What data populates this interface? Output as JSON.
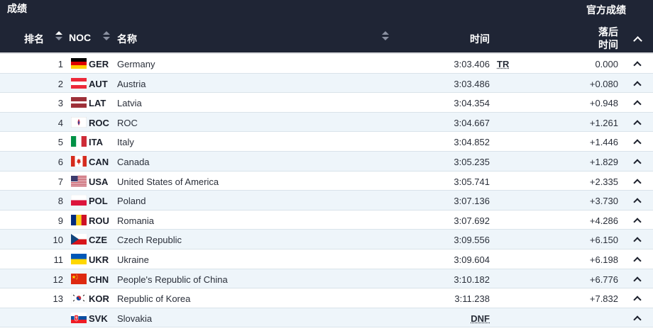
{
  "header": {
    "title": "成绩",
    "official": "官方成绩",
    "col_rank": "排名",
    "col_noc": "NOC",
    "col_name": "名称",
    "col_time": "时间",
    "col_behind_1": "落后",
    "col_behind_2": "时间"
  },
  "rows": [
    {
      "rank": "1",
      "flag": "GER",
      "noc": "GER",
      "name": "Germany",
      "time": "3:03.406",
      "tag": "TR",
      "behind": "0.000"
    },
    {
      "rank": "2",
      "flag": "AUT",
      "noc": "AUT",
      "name": "Austria",
      "time": "3:03.486",
      "tag": "",
      "behind": "+0.080"
    },
    {
      "rank": "3",
      "flag": "LAT",
      "noc": "LAT",
      "name": "Latvia",
      "time": "3:04.354",
      "tag": "",
      "behind": "+0.948"
    },
    {
      "rank": "4",
      "flag": "ROC",
      "noc": "ROC",
      "name": "ROC",
      "time": "3:04.667",
      "tag": "",
      "behind": "+1.261"
    },
    {
      "rank": "5",
      "flag": "ITA",
      "noc": "ITA",
      "name": "Italy",
      "time": "3:04.852",
      "tag": "",
      "behind": "+1.446"
    },
    {
      "rank": "6",
      "flag": "CAN",
      "noc": "CAN",
      "name": "Canada",
      "time": "3:05.235",
      "tag": "",
      "behind": "+1.829"
    },
    {
      "rank": "7",
      "flag": "USA",
      "noc": "USA",
      "name": "United States of America",
      "time": "3:05.741",
      "tag": "",
      "behind": "+2.335"
    },
    {
      "rank": "8",
      "flag": "POL",
      "noc": "POL",
      "name": "Poland",
      "time": "3:07.136",
      "tag": "",
      "behind": "+3.730"
    },
    {
      "rank": "9",
      "flag": "ROU",
      "noc": "ROU",
      "name": "Romania",
      "time": "3:07.692",
      "tag": "",
      "behind": "+4.286"
    },
    {
      "rank": "10",
      "flag": "CZE",
      "noc": "CZE",
      "name": "Czech Republic",
      "time": "3:09.556",
      "tag": "",
      "behind": "+6.150"
    },
    {
      "rank": "11",
      "flag": "UKR",
      "noc": "UKR",
      "name": "Ukraine",
      "time": "3:09.604",
      "tag": "",
      "behind": "+6.198"
    },
    {
      "rank": "12",
      "flag": "CHN",
      "noc": "CHN",
      "name": "People's Republic of China",
      "time": "3:10.182",
      "tag": "",
      "behind": "+6.776"
    },
    {
      "rank": "13",
      "flag": "KOR",
      "noc": "KOR",
      "name": "Republic of Korea",
      "time": "3:11.238",
      "tag": "",
      "behind": "+7.832"
    },
    {
      "rank": "",
      "flag": "SVK",
      "noc": "SVK",
      "name": "Slovakia",
      "time": "DNF",
      "tag": "",
      "behind": ""
    }
  ],
  "colors": {
    "header_bg": "#1f2535",
    "row_alt": "#eef5fa",
    "divider": "#d9e3ea"
  }
}
